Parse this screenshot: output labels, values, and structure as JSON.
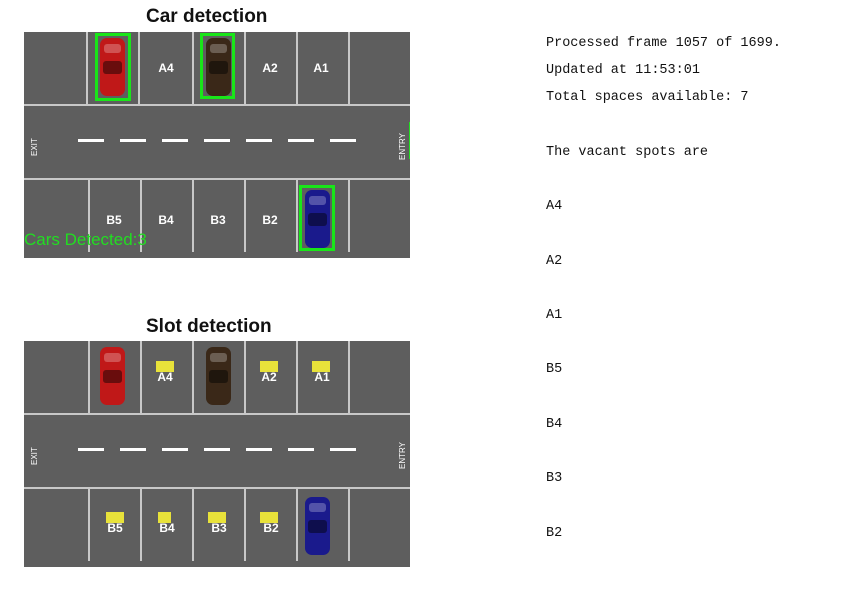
{
  "car_detection": {
    "title": "Car detection",
    "top_labels": [
      "A4",
      "A2",
      "A1"
    ],
    "bottom_labels": [
      "B5",
      "B4",
      "B3",
      "B2"
    ],
    "exit_label": "EXIT",
    "entry_label": "ENTRY",
    "cars_detected": "Cars Detected:3"
  },
  "slot_detection": {
    "title": "Slot detection",
    "top_labels": [
      "A4",
      "A2",
      "A1"
    ],
    "bottom_labels": [
      "B5",
      "B4",
      "B3",
      "B2"
    ],
    "exit_label": "EXIT",
    "entry_label": "ENTRY"
  },
  "colors": {
    "asphalt": "#5e5e5e",
    "detection_box": "#19e619",
    "slot_tag": "#e8e23a",
    "car_red": "#c01818",
    "car_brown": "#3a2818",
    "car_blue": "#1a1a8c"
  },
  "status": {
    "processed_frame": "Processed frame 1057 of 1699.",
    "updated_at": "Updated at 11:53:01",
    "total_spaces": "Total spaces available: 7",
    "vacant_header": "The vacant spots are",
    "vacant_spots": [
      "A4",
      "A2",
      "A1",
      "B5",
      "B4",
      "B3",
      "B2"
    ]
  }
}
